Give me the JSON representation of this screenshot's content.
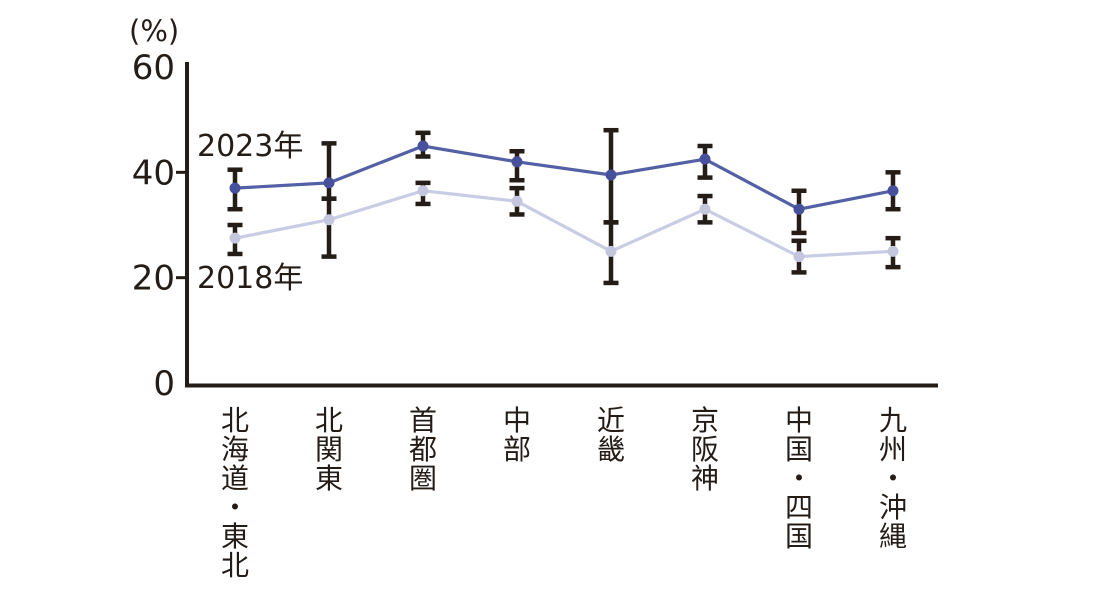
{
  "chart_data": {
    "type": "line",
    "title": "",
    "unit_label": "(%)",
    "xlabel": "",
    "ylabel": "(%)",
    "ylim": [
      0,
      60
    ],
    "y_ticks": [
      0,
      20,
      40,
      60
    ],
    "grid": false,
    "legend_position": "inline-left",
    "categories": [
      "北海道・東北",
      "北関東",
      "首都圏",
      "中部",
      "近畿",
      "京阪神",
      "中国・四国",
      "九州・沖縄"
    ],
    "series": [
      {
        "name": "2023年",
        "marker_color": "#47509a",
        "line_color": "#5360a6",
        "values": [
          37,
          38,
          45,
          42,
          39.5,
          42.5,
          33,
          36.5
        ],
        "error_top": [
          40.5,
          45.5,
          47.5,
          44,
          48,
          45,
          36.5,
          40
        ],
        "error_bottom": [
          33,
          35,
          43,
          38.5,
          30.5,
          39,
          28.5,
          33
        ]
      },
      {
        "name": "2018年",
        "marker_color": "#c3c6dd",
        "line_color": "#c9cde4",
        "values": [
          27.5,
          31,
          36.5,
          34.5,
          25,
          33,
          24,
          25
        ],
        "error_top": [
          30,
          35,
          38,
          37,
          30.5,
          35.5,
          27,
          27.5
        ],
        "error_bottom": [
          24.5,
          24,
          34,
          32,
          19,
          30.5,
          21,
          22
        ]
      }
    ],
    "error_bar_color": "#241c17",
    "axis_color": "#241c17",
    "text_color": "#241c17"
  }
}
